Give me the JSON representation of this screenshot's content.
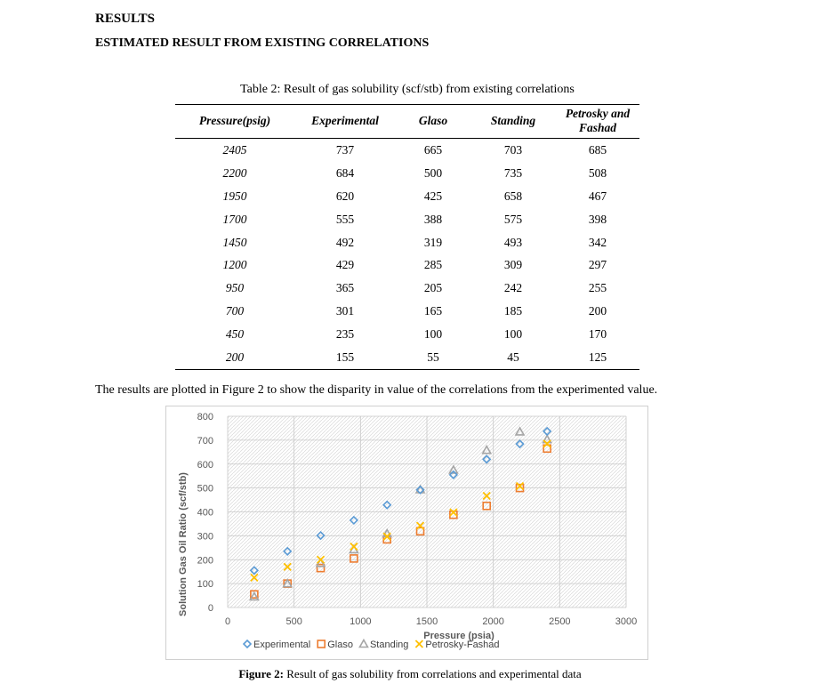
{
  "heading": "RESULTS",
  "subheading": "ESTIMATED RESULT FROM EXISTING CORRELATIONS",
  "table": {
    "caption_label": "Table 2:",
    "caption_text": " Result of gas solubility (scf/stb) from existing correlations",
    "headers": [
      "Pressure(psig)",
      "Experimental",
      "Glaso",
      "Standing",
      "Petrosky and Fashad"
    ],
    "rows": [
      [
        "2405",
        "737",
        "665",
        "703",
        "685"
      ],
      [
        "2200",
        "684",
        "500",
        "735",
        "508"
      ],
      [
        "1950",
        "620",
        "425",
        "658",
        "467"
      ],
      [
        "1700",
        "555",
        "388",
        "575",
        "398"
      ],
      [
        "1450",
        "492",
        "319",
        "493",
        "342"
      ],
      [
        "1200",
        "429",
        "285",
        "309",
        "297"
      ],
      [
        "950",
        "365",
        "205",
        "242",
        "255"
      ],
      [
        "700",
        "301",
        "165",
        "185",
        "200"
      ],
      [
        "450",
        "235",
        "100",
        "100",
        "170"
      ],
      [
        "200",
        "155",
        "55",
        "45",
        "125"
      ]
    ]
  },
  "paragraph": "The results are plotted in Figure 2 to show the disparity in value of the correlations from the experimented value.",
  "chart_data": {
    "type": "scatter",
    "xlabel": "Pressure (psia)",
    "ylabel": "Solution Gas Oil Ratio (scf/stb)",
    "xlim": [
      0,
      3000
    ],
    "ylim": [
      0,
      800
    ],
    "xticks": [
      0,
      500,
      1000,
      1500,
      2000,
      2500,
      3000
    ],
    "yticks": [
      0,
      100,
      200,
      300,
      400,
      500,
      600,
      700,
      800
    ],
    "grid": true,
    "legend_position": "bottom",
    "x": [
      200,
      450,
      700,
      950,
      1200,
      1450,
      1700,
      1950,
      2200,
      2405
    ],
    "series": [
      {
        "name": "Experimental",
        "marker": "diamond",
        "color": "#5B9BD5",
        "values": [
          155,
          235,
          301,
          365,
          429,
          492,
          555,
          620,
          684,
          737
        ]
      },
      {
        "name": "Glaso",
        "marker": "square",
        "color": "#ED7D31",
        "values": [
          55,
          100,
          165,
          205,
          285,
          319,
          388,
          425,
          500,
          665
        ]
      },
      {
        "name": "Standing",
        "marker": "triangle",
        "color": "#A5A5A5",
        "values": [
          45,
          100,
          185,
          242,
          309,
          493,
          575,
          658,
          735,
          703
        ]
      },
      {
        "name": "Petrosky-Fashad",
        "marker": "x",
        "color": "#FFC000",
        "values": [
          125,
          170,
          200,
          255,
          297,
          342,
          398,
          467,
          508,
          685
        ]
      }
    ]
  },
  "figure": {
    "caption_label": "Figure 2:",
    "caption_text": " Result of gas solubility from correlations and experimental data"
  }
}
